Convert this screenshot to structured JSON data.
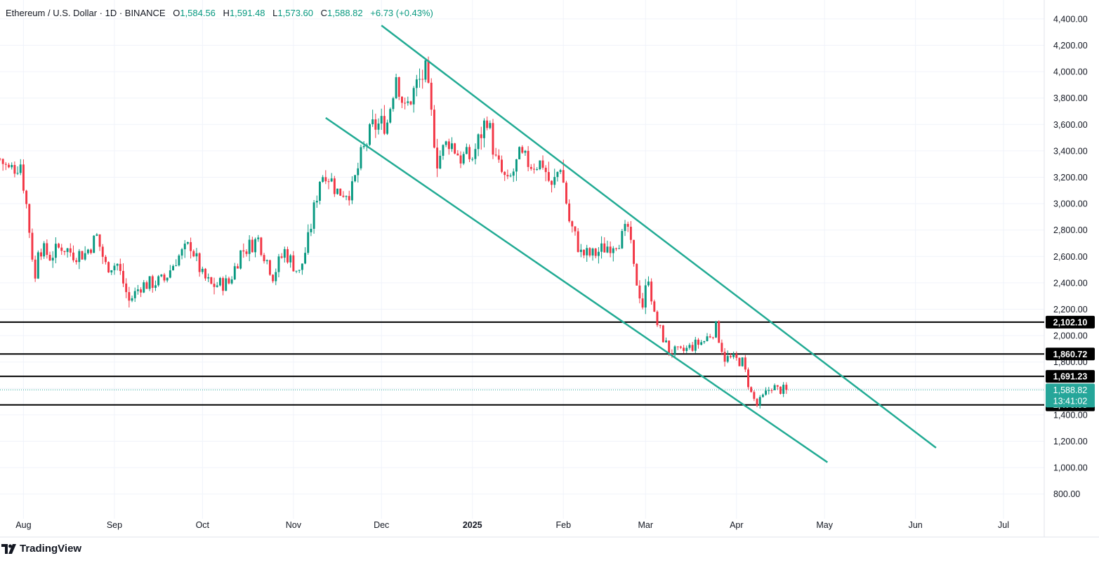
{
  "header": {
    "symbol": "Ethereum / U.S. Dollar · 1D · BINANCE",
    "open_key": "O",
    "open": "1,584.56",
    "high_key": "H",
    "high": "1,591.48",
    "low_key": "L",
    "low": "1,573.60",
    "close_key": "C",
    "close": "1,588.82",
    "change": "+6.73 (+0.43%)"
  },
  "brand": {
    "name": "TradingView"
  },
  "colors": {
    "up": "#089981",
    "down": "#f23645",
    "channel": "#22ab94",
    "level": "#000000",
    "grid": "#f0f3fa",
    "text": "#131722",
    "price_tag": "#26a69a"
  },
  "chart_data": {
    "type": "candlestick",
    "title": "Ethereum / U.S. Dollar · 1D · BINANCE",
    "ylim": [
      700,
      4500
    ],
    "y_ticks": [
      800,
      1000,
      1200,
      1400,
      1600,
      1800,
      2000,
      2200,
      2400,
      2600,
      2800,
      3000,
      3200,
      3400,
      3600,
      3800,
      4000,
      4200,
      4400
    ],
    "y_tick_labels": [
      "800.00",
      "1,000.00",
      "1,200.00",
      "1,400.00",
      "1,600.00",
      "1,800.00",
      "2,000.00",
      "2,200.00",
      "2,400.00",
      "2,600.00",
      "2,800.00",
      "3,000.00",
      "3,200.00",
      "3,400.00",
      "3,600.00",
      "3,800.00",
      "4,000.00",
      "4,200.00",
      "4,400.00"
    ],
    "x_ticks": [
      {
        "label": "Aug",
        "date": "2024-08-01"
      },
      {
        "label": "Sep",
        "date": "2024-09-01"
      },
      {
        "label": "Oct",
        "date": "2024-10-01"
      },
      {
        "label": "Nov",
        "date": "2024-11-01"
      },
      {
        "label": "Dec",
        "date": "2024-12-01"
      },
      {
        "label": "2025",
        "date": "2025-01-01"
      },
      {
        "label": "Feb",
        "date": "2025-02-01"
      },
      {
        "label": "Mar",
        "date": "2025-03-01"
      },
      {
        "label": "Apr",
        "date": "2025-04-01"
      },
      {
        "label": "May",
        "date": "2025-05-01"
      },
      {
        "label": "Jun",
        "date": "2025-06-01"
      },
      {
        "label": "Jul",
        "date": "2025-07-01"
      }
    ],
    "x_range": [
      "2024-07-24",
      "2025-07-12"
    ],
    "horizontal_levels": [
      {
        "value": 2102.1,
        "label": "2,102.10"
      },
      {
        "value": 1860.72,
        "label": "1,860.72"
      },
      {
        "value": 1691.23,
        "label": "1,691.23"
      },
      {
        "value": 1475.53,
        "label": "1,475.53"
      }
    ],
    "last_price": {
      "value": 1588.82,
      "label": "1,588.82",
      "countdown": "13:41:02"
    },
    "trendlines": [
      {
        "name": "upper",
        "from": {
          "date": "2024-12-01",
          "price": 4350
        },
        "to": {
          "date": "2025-06-08",
          "price": 1150
        }
      },
      {
        "name": "lower",
        "from": {
          "date": "2024-11-12",
          "price": 3650
        },
        "to": {
          "date": "2025-05-02",
          "price": 1040
        }
      }
    ],
    "closes": [
      {
        "date": "2024-07-24",
        "close": 3340
      },
      {
        "date": "2024-07-27",
        "close": 3250
      },
      {
        "date": "2024-07-31",
        "close": 3310
      },
      {
        "date": "2024-08-02",
        "close": 2990
      },
      {
        "date": "2024-08-05",
        "close": 2420
      },
      {
        "date": "2024-08-06",
        "close": 2680
      },
      {
        "date": "2024-08-10",
        "close": 2600
      },
      {
        "date": "2024-08-14",
        "close": 2680
      },
      {
        "date": "2024-08-18",
        "close": 2620
      },
      {
        "date": "2024-08-22",
        "close": 2620
      },
      {
        "date": "2024-08-26",
        "close": 2750
      },
      {
        "date": "2024-08-29",
        "close": 2530
      },
      {
        "date": "2024-09-02",
        "close": 2540
      },
      {
        "date": "2024-09-06",
        "close": 2260
      },
      {
        "date": "2024-09-10",
        "close": 2380
      },
      {
        "date": "2024-09-14",
        "close": 2400
      },
      {
        "date": "2024-09-18",
        "close": 2420
      },
      {
        "date": "2024-09-22",
        "close": 2580
      },
      {
        "date": "2024-09-27",
        "close": 2690
      },
      {
        "date": "2024-10-01",
        "close": 2450
      },
      {
        "date": "2024-10-04",
        "close": 2380
      },
      {
        "date": "2024-10-10",
        "close": 2400
      },
      {
        "date": "2024-10-14",
        "close": 2630
      },
      {
        "date": "2024-10-20",
        "close": 2730
      },
      {
        "date": "2024-10-25",
        "close": 2460
      },
      {
        "date": "2024-10-29",
        "close": 2640
      },
      {
        "date": "2024-11-03",
        "close": 2470
      },
      {
        "date": "2024-11-06",
        "close": 2720
      },
      {
        "date": "2024-11-10",
        "close": 3190
      },
      {
        "date": "2024-11-12",
        "close": 3250
      },
      {
        "date": "2024-11-16",
        "close": 3090
      },
      {
        "date": "2024-11-21",
        "close": 3100
      },
      {
        "date": "2024-11-24",
        "close": 3350
      },
      {
        "date": "2024-11-28",
        "close": 3580
      },
      {
        "date": "2024-12-03",
        "close": 3620
      },
      {
        "date": "2024-12-06",
        "close": 3990
      },
      {
        "date": "2024-12-09",
        "close": 3700
      },
      {
        "date": "2024-12-13",
        "close": 3900
      },
      {
        "date": "2024-12-16",
        "close": 3990
      },
      {
        "date": "2024-12-20",
        "close": 3330
      },
      {
        "date": "2024-12-24",
        "close": 3480
      },
      {
        "date": "2024-12-28",
        "close": 3350
      },
      {
        "date": "2025-01-01",
        "close": 3350
      },
      {
        "date": "2025-01-06",
        "close": 3660
      },
      {
        "date": "2025-01-09",
        "close": 3320
      },
      {
        "date": "2025-01-13",
        "close": 3140
      },
      {
        "date": "2025-01-17",
        "close": 3350
      },
      {
        "date": "2025-01-21",
        "close": 3300
      },
      {
        "date": "2025-01-25",
        "close": 3310
      },
      {
        "date": "2025-01-28",
        "close": 3110
      },
      {
        "date": "2025-01-31",
        "close": 3300
      },
      {
        "date": "2025-02-03",
        "close": 2870
      },
      {
        "date": "2025-02-07",
        "close": 2620
      },
      {
        "date": "2025-02-11",
        "close": 2610
      },
      {
        "date": "2025-02-16",
        "close": 2680
      },
      {
        "date": "2025-02-21",
        "close": 2740
      },
      {
        "date": "2025-02-23",
        "close": 2820
      },
      {
        "date": "2025-02-25",
        "close": 2500
      },
      {
        "date": "2025-02-28",
        "close": 2230
      },
      {
        "date": "2025-03-02",
        "close": 2460
      },
      {
        "date": "2025-03-04",
        "close": 2140
      },
      {
        "date": "2025-03-09",
        "close": 1880
      },
      {
        "date": "2025-03-13",
        "close": 1870
      },
      {
        "date": "2025-03-17",
        "close": 1920
      },
      {
        "date": "2025-03-21",
        "close": 1960
      },
      {
        "date": "2025-03-25",
        "close": 2060
      },
      {
        "date": "2025-03-28",
        "close": 1830
      },
      {
        "date": "2025-03-31",
        "close": 1820
      },
      {
        "date": "2025-04-03",
        "close": 1800
      },
      {
        "date": "2025-04-06",
        "close": 1560
      },
      {
        "date": "2025-04-08",
        "close": 1470
      },
      {
        "date": "2025-04-10",
        "close": 1530
      },
      {
        "date": "2025-04-13",
        "close": 1620
      },
      {
        "date": "2025-04-15",
        "close": 1590
      },
      {
        "date": "2025-04-18",
        "close": 1588.82
      }
    ]
  }
}
